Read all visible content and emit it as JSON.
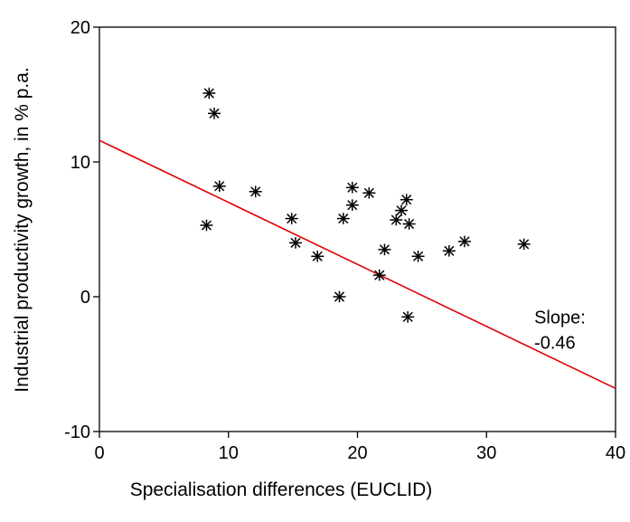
{
  "chart_data": {
    "type": "scatter",
    "title": "",
    "xlabel": "Specialisation differences (EUCLID)",
    "ylabel": "Industrial productivity growth, in % p.a.",
    "xlim": [
      0,
      40
    ],
    "ylim": [
      -10,
      20
    ],
    "xticks": [
      0,
      10,
      20,
      30,
      40
    ],
    "yticks": [
      -10,
      0,
      10,
      20
    ],
    "x_tick_labels": [
      "0",
      "10",
      "20",
      "30",
      "40"
    ],
    "y_tick_labels": [
      "-10",
      "0",
      "10",
      "20"
    ],
    "marker": "asterisk",
    "grid": false,
    "points": [
      {
        "x": 8.5,
        "y": 15.1
      },
      {
        "x": 8.9,
        "y": 13.6
      },
      {
        "x": 9.3,
        "y": 8.2
      },
      {
        "x": 8.3,
        "y": 5.3
      },
      {
        "x": 12.1,
        "y": 7.8
      },
      {
        "x": 14.9,
        "y": 5.8
      },
      {
        "x": 15.2,
        "y": 4.0
      },
      {
        "x": 16.9,
        "y": 3.0
      },
      {
        "x": 18.6,
        "y": 0.0
      },
      {
        "x": 18.9,
        "y": 5.8
      },
      {
        "x": 19.6,
        "y": 8.1
      },
      {
        "x": 19.6,
        "y": 6.8
      },
      {
        "x": 20.9,
        "y": 7.7
      },
      {
        "x": 21.7,
        "y": 1.6
      },
      {
        "x": 22.1,
        "y": 3.5
      },
      {
        "x": 23.0,
        "y": 5.7
      },
      {
        "x": 23.4,
        "y": 6.4
      },
      {
        "x": 23.8,
        "y": 7.2
      },
      {
        "x": 24.0,
        "y": 5.4
      },
      {
        "x": 23.9,
        "y": -1.5
      },
      {
        "x": 24.7,
        "y": 3.0
      },
      {
        "x": 27.1,
        "y": 3.4
      },
      {
        "x": 28.3,
        "y": 4.1
      },
      {
        "x": 32.9,
        "y": 3.9
      }
    ],
    "fit_line": {
      "intercept": 11.6,
      "slope": -0.46,
      "color": "#e00000"
    },
    "annotation": {
      "line1": "Slope:",
      "line2": "-0.46",
      "x": 33.7,
      "y": -1.5
    }
  }
}
